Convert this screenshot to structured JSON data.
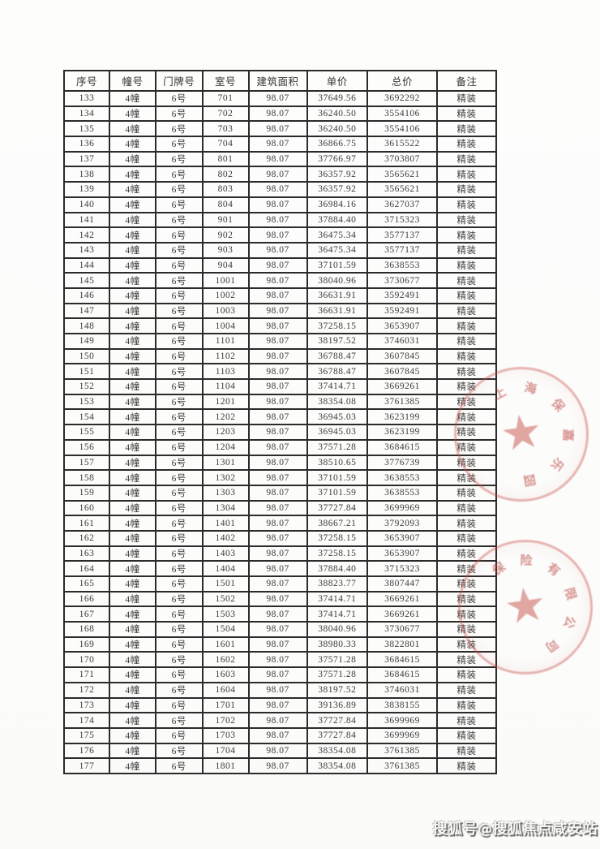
{
  "table": {
    "headers": [
      "序号",
      "幢号",
      "门牌号",
      "室号",
      "建筑面积",
      "单价",
      "总价",
      "备注"
    ],
    "rows": [
      [
        "133",
        "4幢",
        "6号",
        "701",
        "98.07",
        "37649.56",
        "3692292",
        "精装"
      ],
      [
        "134",
        "4幢",
        "6号",
        "702",
        "98.07",
        "36240.50",
        "3554106",
        "精装"
      ],
      [
        "135",
        "4幢",
        "6号",
        "703",
        "98.07",
        "36240.50",
        "3554106",
        "精装"
      ],
      [
        "136",
        "4幢",
        "6号",
        "704",
        "98.07",
        "36866.75",
        "3615522",
        "精装"
      ],
      [
        "137",
        "4幢",
        "6号",
        "801",
        "98.07",
        "37766.97",
        "3703807",
        "精装"
      ],
      [
        "138",
        "4幢",
        "6号",
        "802",
        "98.07",
        "36357.92",
        "3565621",
        "精装"
      ],
      [
        "139",
        "4幢",
        "6号",
        "803",
        "98.07",
        "36357.92",
        "3565621",
        "精装"
      ],
      [
        "140",
        "4幢",
        "6号",
        "804",
        "98.07",
        "36984.16",
        "3627037",
        "精装"
      ],
      [
        "141",
        "4幢",
        "6号",
        "901",
        "98.07",
        "37884.40",
        "3715323",
        "精装"
      ],
      [
        "142",
        "4幢",
        "6号",
        "902",
        "98.07",
        "36475.34",
        "3577137",
        "精装"
      ],
      [
        "143",
        "4幢",
        "6号",
        "903",
        "98.07",
        "36475.34",
        "3577137",
        "精装"
      ],
      [
        "144",
        "4幢",
        "6号",
        "904",
        "98.07",
        "37101.59",
        "3638553",
        "精装"
      ],
      [
        "145",
        "4幢",
        "6号",
        "1001",
        "98.07",
        "38040.96",
        "3730677",
        "精装"
      ],
      [
        "146",
        "4幢",
        "6号",
        "1002",
        "98.07",
        "36631.91",
        "3592491",
        "精装"
      ],
      [
        "147",
        "4幢",
        "6号",
        "1003",
        "98.07",
        "36631.91",
        "3592491",
        "精装"
      ],
      [
        "148",
        "4幢",
        "6号",
        "1004",
        "98.07",
        "37258.15",
        "3653907",
        "精装"
      ],
      [
        "149",
        "4幢",
        "6号",
        "1101",
        "98.07",
        "38197.52",
        "3746031",
        "精装"
      ],
      [
        "150",
        "4幢",
        "6号",
        "1102",
        "98.07",
        "36788.47",
        "3607845",
        "精装"
      ],
      [
        "151",
        "4幢",
        "6号",
        "1103",
        "98.07",
        "36788.47",
        "3607845",
        "精装"
      ],
      [
        "152",
        "4幢",
        "6号",
        "1104",
        "98.07",
        "37414.71",
        "3669261",
        "精装"
      ],
      [
        "153",
        "4幢",
        "6号",
        "1201",
        "98.07",
        "38354.08",
        "3761385",
        "精装"
      ],
      [
        "154",
        "4幢",
        "6号",
        "1202",
        "98.07",
        "36945.03",
        "3623199",
        "精装"
      ],
      [
        "155",
        "4幢",
        "6号",
        "1203",
        "98.07",
        "36945.03",
        "3623199",
        "精装"
      ],
      [
        "156",
        "4幢",
        "6号",
        "1204",
        "98.07",
        "37571.28",
        "3684615",
        "精装"
      ],
      [
        "157",
        "4幢",
        "6号",
        "1301",
        "98.07",
        "38510.65",
        "3776739",
        "精装"
      ],
      [
        "158",
        "4幢",
        "6号",
        "1302",
        "98.07",
        "37101.59",
        "3638553",
        "精装"
      ],
      [
        "159",
        "4幢",
        "6号",
        "1303",
        "98.07",
        "37101.59",
        "3638553",
        "精装"
      ],
      [
        "160",
        "4幢",
        "6号",
        "1304",
        "98.07",
        "37727.84",
        "3699969",
        "精装"
      ],
      [
        "161",
        "4幢",
        "6号",
        "1401",
        "98.07",
        "38667.21",
        "3792093",
        "精装"
      ],
      [
        "162",
        "4幢",
        "6号",
        "1402",
        "98.07",
        "37258.15",
        "3653907",
        "精装"
      ],
      [
        "163",
        "4幢",
        "6号",
        "1403",
        "98.07",
        "37258.15",
        "3653907",
        "精装"
      ],
      [
        "164",
        "4幢",
        "6号",
        "1404",
        "98.07",
        "37884.40",
        "3715323",
        "精装"
      ],
      [
        "165",
        "4幢",
        "6号",
        "1501",
        "98.07",
        "38823.77",
        "3807447",
        "精装"
      ],
      [
        "166",
        "4幢",
        "6号",
        "1502",
        "98.07",
        "37414.71",
        "3669261",
        "精装"
      ],
      [
        "167",
        "4幢",
        "6号",
        "1503",
        "98.07",
        "37414.71",
        "3669261",
        "精装"
      ],
      [
        "168",
        "4幢",
        "6号",
        "1504",
        "98.07",
        "38040.96",
        "3730677",
        "精装"
      ],
      [
        "169",
        "4幢",
        "6号",
        "1601",
        "98.07",
        "38980.33",
        "3822801",
        "精装"
      ],
      [
        "170",
        "4幢",
        "6号",
        "1602",
        "98.07",
        "37571.28",
        "3684615",
        "精装"
      ],
      [
        "171",
        "4幢",
        "6号",
        "1603",
        "98.07",
        "37571.28",
        "3684615",
        "精装"
      ],
      [
        "172",
        "4幢",
        "6号",
        "1604",
        "98.07",
        "38197.52",
        "3746031",
        "精装"
      ],
      [
        "173",
        "4幢",
        "6号",
        "1701",
        "98.07",
        "39136.89",
        "3838155",
        "精装"
      ],
      [
        "174",
        "4幢",
        "6号",
        "1702",
        "98.07",
        "37727.84",
        "3699969",
        "精装"
      ],
      [
        "175",
        "4幢",
        "6号",
        "1703",
        "98.07",
        "37727.84",
        "3699969",
        "精装"
      ],
      [
        "176",
        "4幢",
        "6号",
        "1704",
        "98.07",
        "38354.08",
        "3761385",
        "精装"
      ],
      [
        "177",
        "4幢",
        "6号",
        "1801",
        "98.07",
        "38354.08",
        "3761385",
        "精装"
      ]
    ]
  },
  "stamps": [
    {
      "arc_text": "上海保嘉乐园",
      "color": "#c7524c"
    },
    {
      "arc_text": "保险有限公司",
      "color": "#c7524c"
    }
  ],
  "watermark": {
    "text": "搜狐号@搜狐焦点咸安站"
  }
}
